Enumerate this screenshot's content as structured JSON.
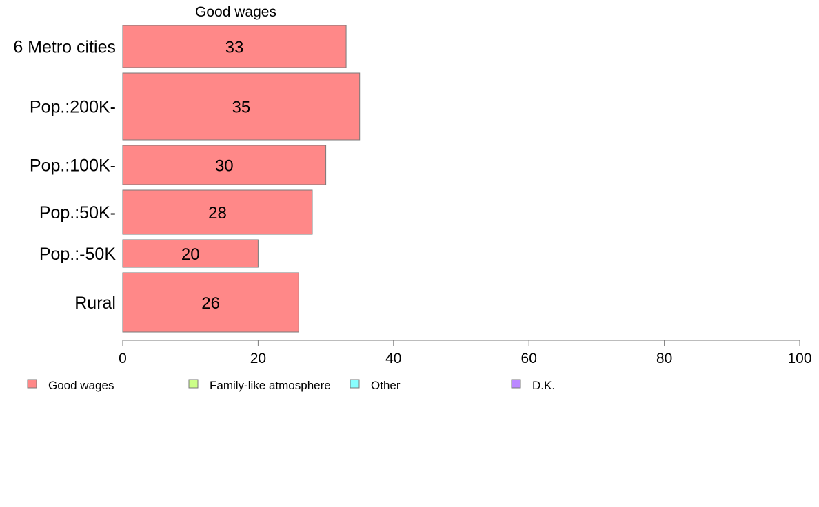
{
  "chart_data": {
    "type": "bar",
    "orientation": "horizontal",
    "title": "Good wages",
    "categories": [
      "6 Metro cities",
      "Pop.:200K-",
      "Pop.:100K-",
      "Pop.:50K-",
      "Pop.:-50K",
      "Rural"
    ],
    "series": [
      {
        "name": "Good wages",
        "values": [
          33,
          35,
          30,
          28,
          20,
          26
        ],
        "color": "#ff8888"
      }
    ],
    "data_labels": [
      "33",
      "35",
      "30",
      "28",
      "20",
      "26"
    ],
    "xlim": [
      0,
      100
    ],
    "x_ticks": [
      "0",
      "20",
      "40",
      "60",
      "80",
      "100"
    ],
    "grid": false,
    "legend_position": "bottom",
    "legend": [
      {
        "label": "Good wages",
        "color": "#ff8888"
      },
      {
        "label": "Family-like atmosphere",
        "color": "#ccff88"
      },
      {
        "label": "Other",
        "color": "#88ffff"
      },
      {
        "label": "D.K.",
        "color": "#bb88ff"
      }
    ]
  }
}
